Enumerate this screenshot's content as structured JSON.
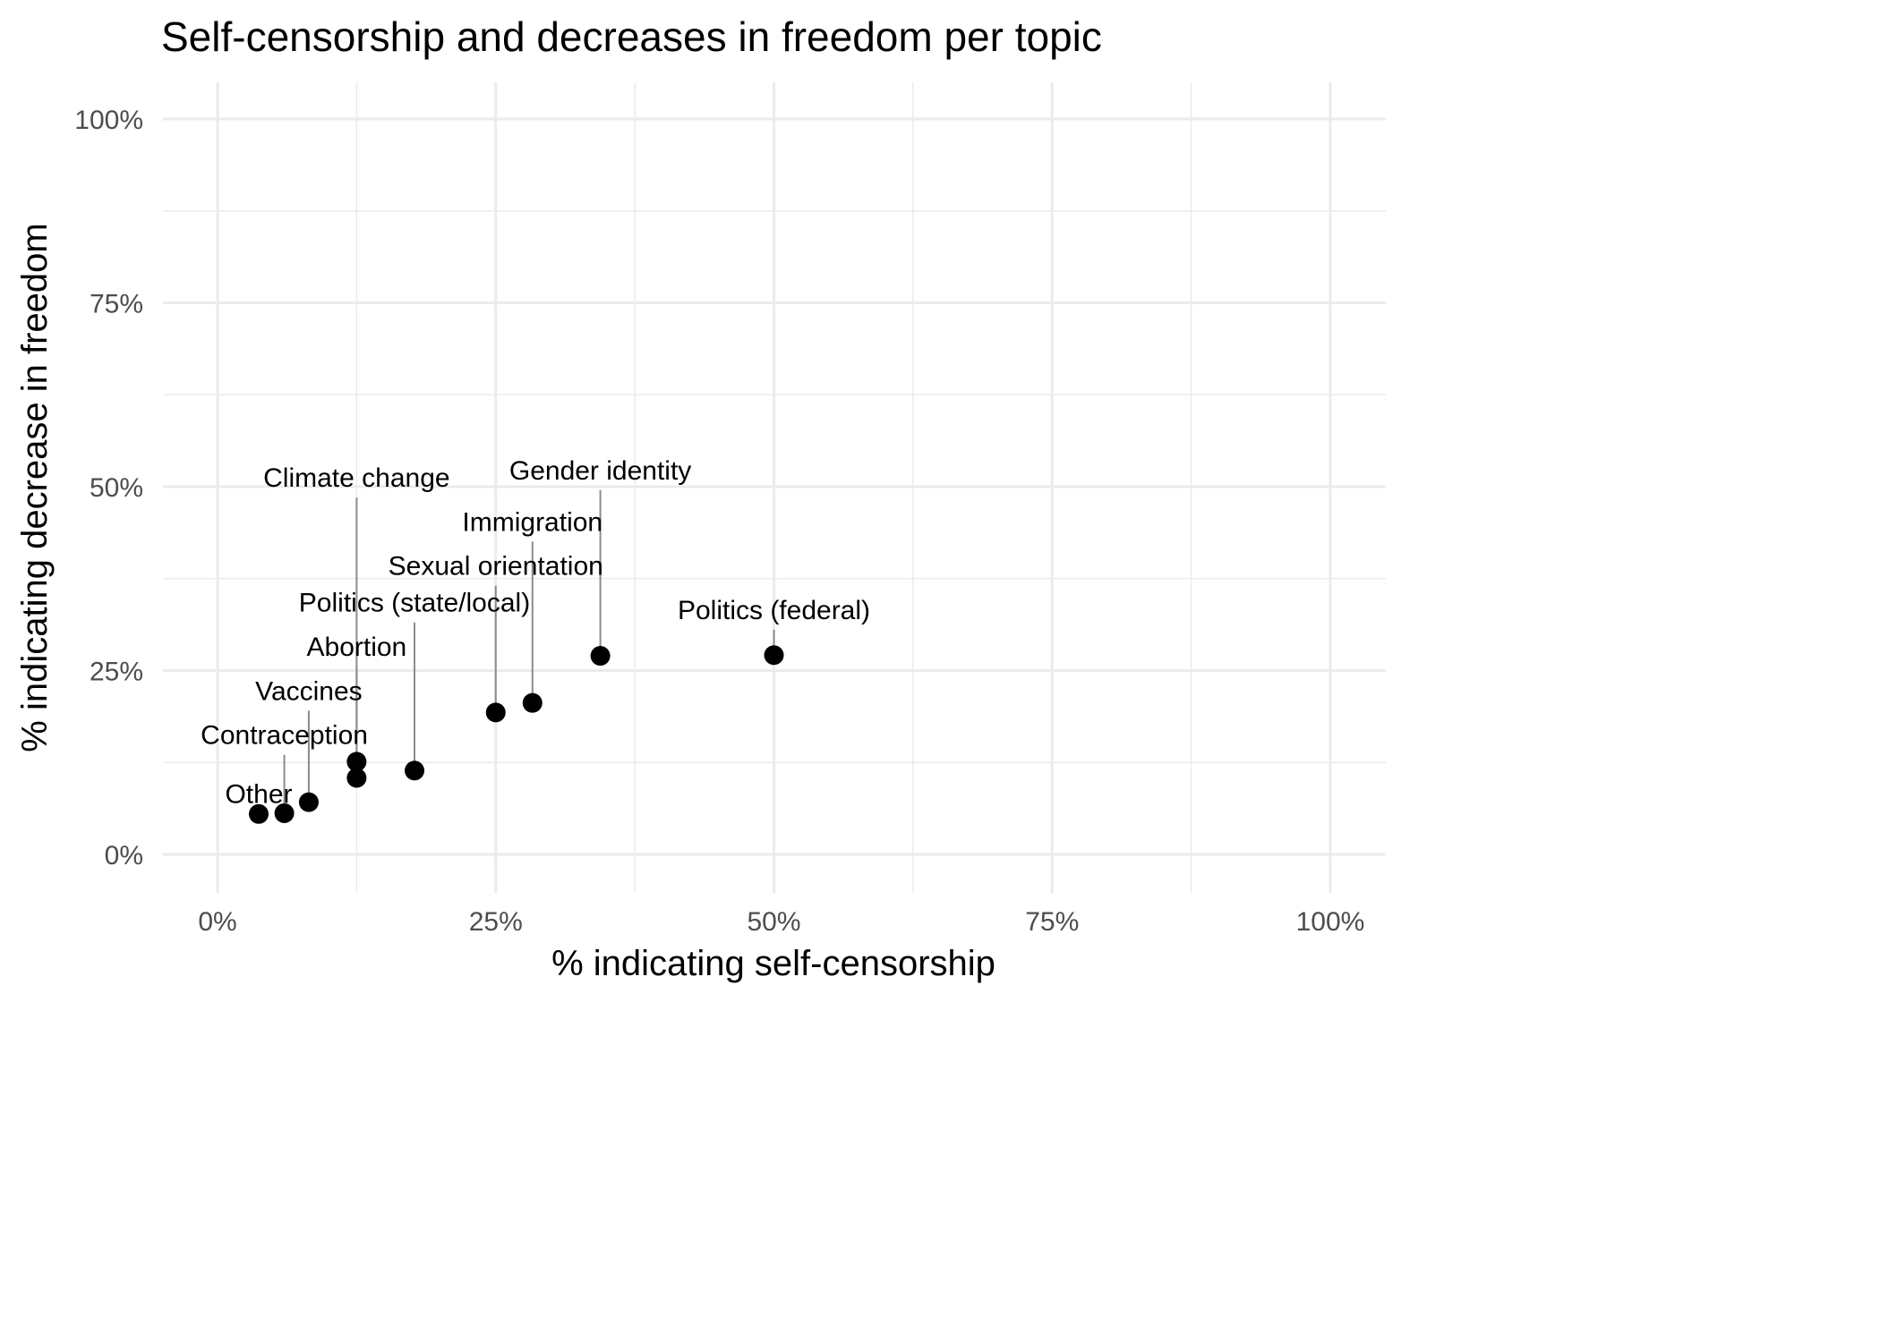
{
  "chart_data": {
    "type": "scatter",
    "title": "Self-censorship and decreases in freedom per topic",
    "xlabel": "% indicating self-censorship",
    "ylabel": "% indicating decrease in freedom",
    "xlim": [
      -0.05,
      1.05
    ],
    "ylim": [
      -0.05,
      1.05
    ],
    "x_ticks": [
      0,
      0.25,
      0.5,
      0.75,
      1.0
    ],
    "x_tick_labels": [
      "0%",
      "25%",
      "50%",
      "75%",
      "100%"
    ],
    "y_ticks": [
      0,
      0.25,
      0.5,
      0.75,
      1.0
    ],
    "y_tick_labels": [
      "0%",
      "25%",
      "50%",
      "75%",
      "100%"
    ],
    "grid": true,
    "legend": "none",
    "points": [
      {
        "label": "Other",
        "x": 0.037,
        "y": 0.055,
        "label_y": 0.07
      },
      {
        "label": "Contraception",
        "x": 0.06,
        "y": 0.056,
        "label_y": 0.15
      },
      {
        "label": "Vaccines",
        "x": 0.082,
        "y": 0.071,
        "label_y": 0.21
      },
      {
        "label": "Abortion",
        "x": 0.125,
        "y": 0.104,
        "label_y": 0.27
      },
      {
        "label": "Climate change",
        "x": 0.125,
        "y": 0.126,
        "label_y": 0.5
      },
      {
        "label": "Politics (state/local)",
        "x": 0.177,
        "y": 0.114,
        "label_y": 0.33
      },
      {
        "label": "Sexual orientation",
        "x": 0.25,
        "y": 0.193,
        "label_y": 0.38
      },
      {
        "label": "Immigration",
        "x": 0.283,
        "y": 0.206,
        "label_y": 0.44
      },
      {
        "label": "Gender identity",
        "x": 0.344,
        "y": 0.27,
        "label_y": 0.51
      },
      {
        "label": "Politics (federal)",
        "x": 0.5,
        "y": 0.271,
        "label_y": 0.32
      }
    ]
  },
  "colors": {
    "point": "#000000",
    "grid": "#ebebeb",
    "tick_text": "#4d4d4d",
    "leader": "#8c8c8c",
    "text": "#000000"
  }
}
